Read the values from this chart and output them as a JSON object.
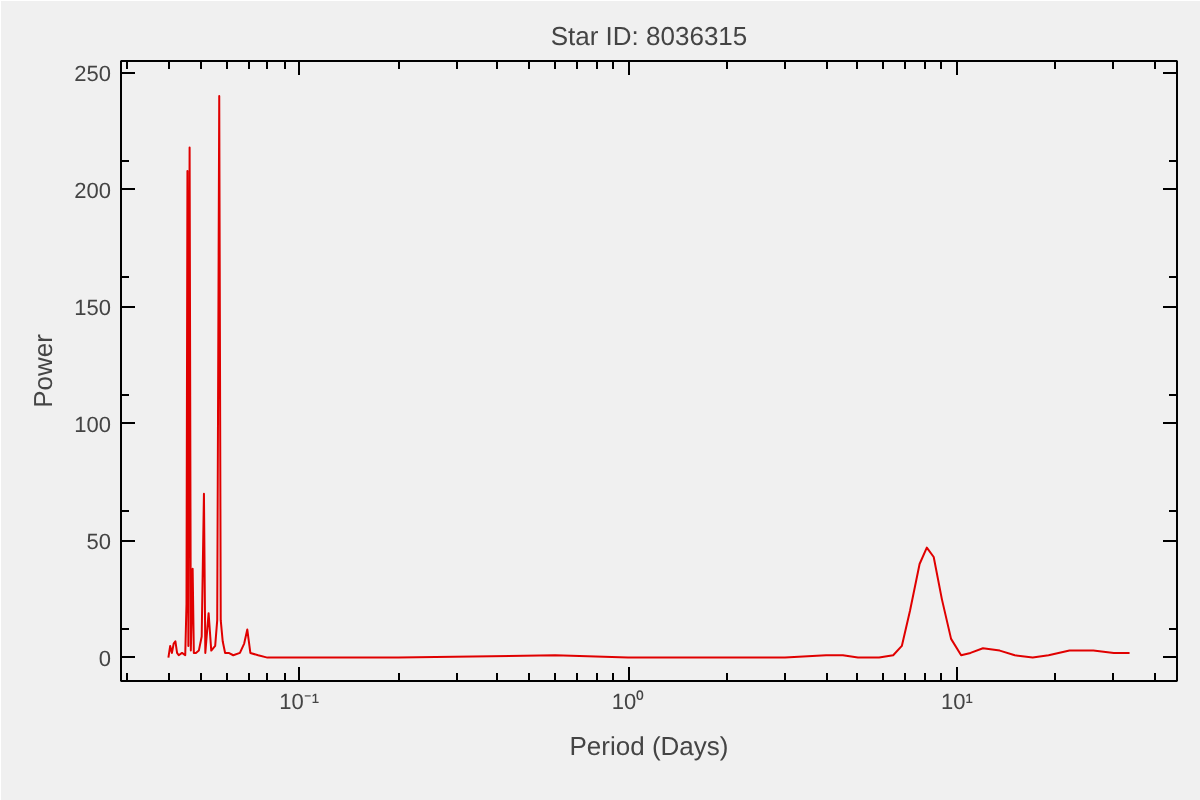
{
  "chart_data": {
    "type": "line",
    "title": "Star ID: 8036315",
    "xlabel": "Period (Days)",
    "ylabel": "Power",
    "log": "x",
    "grid": false,
    "marker": "none",
    "line_style": "solid",
    "xlim": [
      0.0287,
      46.7
    ],
    "ylim": [
      -10,
      255
    ],
    "xticks": [
      {
        "value": 0.1,
        "label": "10⁻¹"
      },
      {
        "value": 1,
        "label": "10⁰"
      },
      {
        "value": 10,
        "label": "10¹"
      }
    ],
    "yticks": [
      0,
      50,
      100,
      150,
      200,
      250
    ],
    "series": [
      {
        "color": "#e00000",
        "x": [
          0.04,
          0.0405,
          0.041,
          0.0415,
          0.042,
          0.0425,
          0.043,
          0.044,
          0.045,
          0.0454,
          0.0457,
          0.046,
          0.0464,
          0.0468,
          0.0474,
          0.0478,
          0.0485,
          0.0495,
          0.0505,
          0.0513,
          0.0518,
          0.053,
          0.054,
          0.0555,
          0.0563,
          0.0571,
          0.0577,
          0.0585,
          0.0595,
          0.061,
          0.063,
          0.066,
          0.068,
          0.0695,
          0.071,
          0.075,
          0.08,
          0.2,
          0.6,
          1,
          3,
          4,
          4.5,
          5,
          5.8,
          6.4,
          6.8,
          7.2,
          7.7,
          8.1,
          8.5,
          9,
          9.6,
          10.3,
          11,
          12,
          13.5,
          15,
          17,
          19,
          22,
          26,
          30,
          33.5
        ],
        "values": [
          0,
          5,
          2,
          6,
          7,
          2,
          1,
          2,
          1,
          23,
          208,
          5,
          218,
          3,
          38,
          2,
          2,
          3,
          9,
          70,
          2,
          19,
          3,
          5,
          16,
          240,
          16,
          7,
          2,
          2,
          1,
          2,
          6,
          12,
          2,
          1,
          0,
          0,
          1,
          0,
          0,
          1,
          1,
          0,
          0,
          1,
          5,
          20,
          40,
          47,
          43,
          25,
          8,
          1,
          2,
          4,
          3,
          1,
          0,
          1,
          3,
          3,
          2,
          2
        ]
      }
    ]
  }
}
